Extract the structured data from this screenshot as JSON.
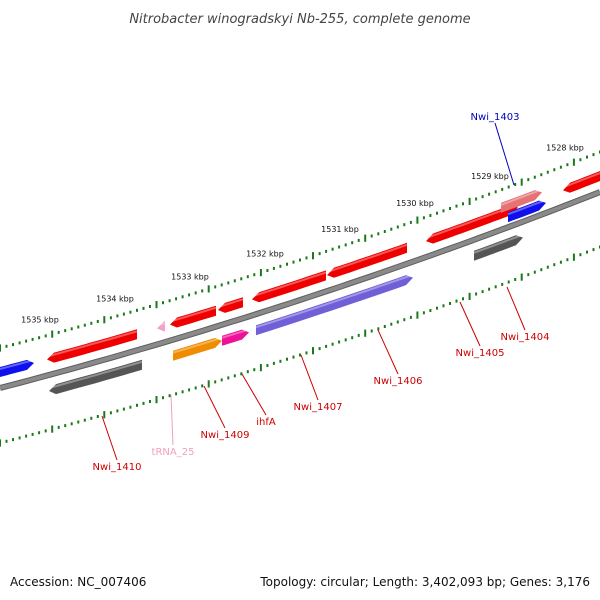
{
  "title": "Nitrobacter winogradskyi Nb-255, complete genome",
  "footer": {
    "accession": "Accession: NC_007406",
    "summary": "Topology: circular; Length: 3,402,093 bp; Genes: 3,176"
  },
  "colors": {
    "backbone": "#8a8a8a",
    "tick": "#1a7a1a",
    "cds_forward": "#ee0000",
    "cds_reverse_gray": "#555555",
    "cds_blue": "#1010ee",
    "cds_purple": "#7060d8",
    "cds_orange": "#f08c00",
    "cds_pink": "#ee1199",
    "cds_salmon": "#e57373",
    "trna": "#f4a0c8",
    "label_red": "#cc0000",
    "label_blue": "#0000bb",
    "label_pink": "#f0a0c0"
  },
  "scale_labels": [
    {
      "text": "1528 kbp",
      "kbp": 1528
    },
    {
      "text": "1529 kbp",
      "kbp": 1529
    },
    {
      "text": "1530 kbp",
      "kbp": 1530
    },
    {
      "text": "1531 kbp",
      "kbp": 1531
    },
    {
      "text": "1532 kbp",
      "kbp": 1532
    },
    {
      "text": "1533 kbp",
      "kbp": 1533
    },
    {
      "text": "1534 kbp",
      "kbp": 1534
    },
    {
      "text": "1535 kbp",
      "kbp": 1535
    }
  ],
  "gene_labels": [
    {
      "id": "nwi1403",
      "text": "Nwi_1403",
      "color": "#0000bb"
    },
    {
      "id": "nwi1404",
      "text": "Nwi_1404",
      "color": "#cc0000"
    },
    {
      "id": "nwi1405",
      "text": "Nwi_1405",
      "color": "#cc0000"
    },
    {
      "id": "nwi1406",
      "text": "Nwi_1406",
      "color": "#cc0000"
    },
    {
      "id": "nwi1407",
      "text": "Nwi_1407",
      "color": "#cc0000"
    },
    {
      "id": "ihfa",
      "text": "ihfA",
      "color": "#cc0000"
    },
    {
      "id": "nwi1409",
      "text": "Nwi_1409",
      "color": "#cc0000"
    },
    {
      "id": "trna25",
      "text": "tRNA_25",
      "color": "#f0a0c0"
    },
    {
      "id": "nwi1410",
      "text": "Nwi_1410",
      "color": "#cc0000"
    }
  ]
}
